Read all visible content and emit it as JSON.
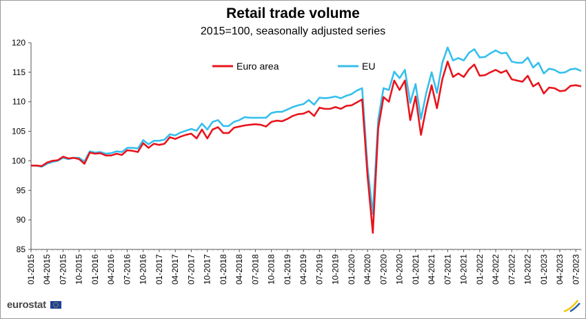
{
  "chart_data": {
    "type": "line",
    "title": "Retail trade volume",
    "subtitle": "2015=100, seasonally adjusted series",
    "ylim": [
      85,
      120
    ],
    "yticks": [
      85,
      90,
      95,
      100,
      105,
      110,
      115,
      120
    ],
    "grid": false,
    "legend_position": "top-left",
    "xtick_labels": [
      "01-2015",
      "04-2015",
      "07-2015",
      "10-2015",
      "01-2016",
      "04-2016",
      "07-2016",
      "10-2016",
      "01-2017",
      "04-2017",
      "07-2017",
      "10-2017",
      "01-2018",
      "04-2018",
      "07-2018",
      "10-2018",
      "01-2019",
      "04-2019",
      "07-2019",
      "10-2019",
      "01-2020",
      "04-2020",
      "07-2020",
      "10-2020",
      "01-2021",
      "04-2021",
      "07-2021",
      "10-2021",
      "01-2022",
      "04-2022",
      "07-2022",
      "10-2022",
      "01-2023",
      "04-2023",
      "07-2023"
    ],
    "series": [
      {
        "name": "Euro area",
        "color": "#e8141c",
        "values": [
          99.2,
          99.2,
          99.1,
          99.7,
          100.0,
          100.1,
          100.7,
          100.4,
          100.5,
          100.3,
          99.5,
          101.4,
          101.2,
          101.3,
          100.9,
          100.9,
          101.2,
          101.0,
          101.8,
          101.7,
          101.5,
          103.0,
          102.2,
          102.9,
          102.7,
          102.9,
          104.0,
          103.7,
          104.1,
          104.4,
          104.6,
          103.8,
          105.3,
          103.8,
          105.3,
          105.7,
          104.7,
          104.7,
          105.6,
          105.8,
          106.0,
          106.1,
          106.2,
          106.1,
          105.8,
          106.6,
          106.8,
          106.7,
          107.1,
          107.6,
          107.9,
          108.0,
          108.4,
          107.6,
          109.0,
          108.8,
          108.8,
          109.1,
          108.8,
          109.3,
          109.4,
          109.9,
          110.4,
          97.5,
          87.8,
          105.5,
          110.8,
          110.0,
          113.6,
          112.0,
          113.6,
          106.9,
          110.9,
          104.4,
          109.0,
          112.8,
          108.9,
          113.8,
          116.8,
          114.2,
          114.8,
          114.2,
          115.5,
          116.3,
          114.4,
          114.5,
          115.0,
          115.4,
          114.9,
          115.3,
          113.8,
          113.6,
          113.4,
          114.4,
          112.6,
          113.2,
          111.4,
          112.4,
          112.3,
          111.8,
          111.9,
          112.7,
          112.8,
          112.6
        ]
      },
      {
        "name": "EU",
        "color": "#35bfee",
        "values": [
          99.2,
          99.2,
          99.0,
          99.5,
          99.8,
          100.0,
          100.5,
          100.3,
          100.5,
          100.5,
          99.9,
          101.6,
          101.4,
          101.5,
          101.2,
          101.3,
          101.6,
          101.5,
          102.2,
          102.2,
          102.1,
          103.5,
          102.8,
          103.4,
          103.4,
          103.6,
          104.5,
          104.3,
          104.8,
          105.1,
          105.4,
          105.1,
          106.3,
          105.3,
          106.6,
          106.9,
          105.9,
          105.9,
          106.6,
          106.9,
          107.4,
          107.3,
          107.3,
          107.3,
          107.3,
          108.1,
          108.3,
          108.3,
          108.7,
          109.1,
          109.4,
          109.6,
          110.3,
          109.5,
          110.7,
          110.6,
          110.7,
          110.9,
          110.6,
          111.0,
          111.3,
          111.9,
          112.3,
          99.0,
          91.0,
          107.0,
          112.3,
          112.0,
          115.1,
          114.0,
          115.4,
          109.8,
          113.0,
          107.1,
          111.5,
          115.0,
          111.5,
          116.6,
          119.2,
          117.0,
          117.4,
          117.0,
          118.3,
          118.9,
          117.5,
          117.6,
          118.2,
          118.7,
          118.2,
          118.3,
          116.8,
          116.6,
          116.6,
          117.5,
          115.8,
          116.6,
          114.8,
          115.6,
          115.4,
          114.9,
          115.0,
          115.5,
          115.6,
          115.2
        ]
      }
    ]
  },
  "branding": {
    "logo_text": "eurostat"
  }
}
